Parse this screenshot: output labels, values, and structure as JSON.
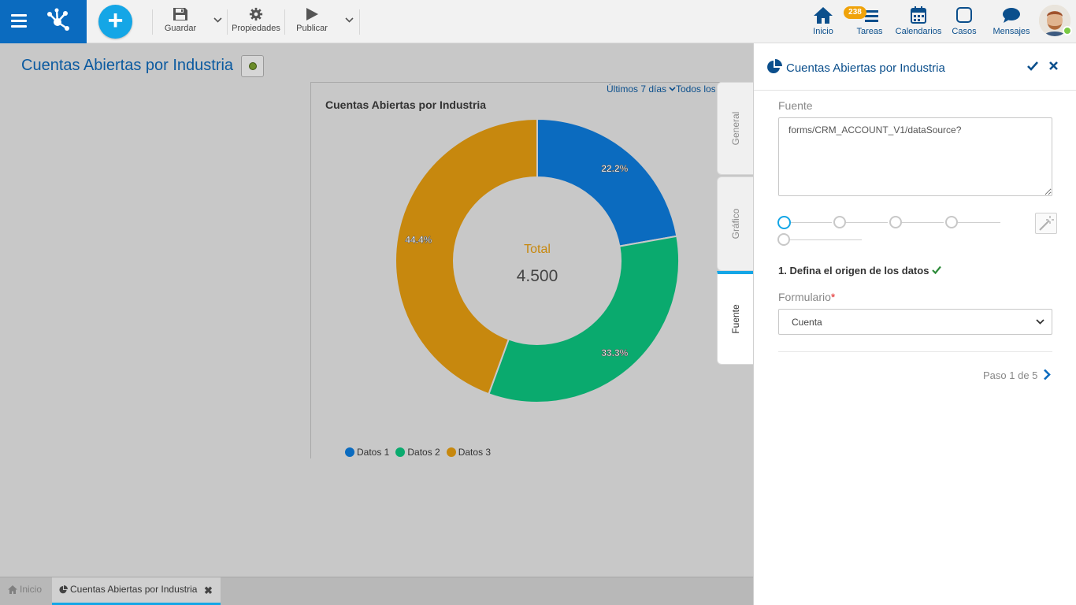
{
  "toolbar": {
    "save_label": "Guardar",
    "properties_label": "Propiedades",
    "publish_label": "Publicar"
  },
  "nav": {
    "home_label": "Inicio",
    "tasks_label": "Tareas",
    "tasks_badge": "238",
    "calendars_label": "Calendarios",
    "cases_label": "Casos",
    "messages_label": "Mensajes"
  },
  "page": {
    "title": "Cuentas Abiertas por Industria"
  },
  "widget": {
    "period_label": "Últimos 7 días",
    "filter_label": "Todos los"
  },
  "chart_data": {
    "type": "pie",
    "title": "Cuentas Abiertas por Industria",
    "center_label": "Total",
    "center_value": "4.500",
    "categories": [
      "Datos 1",
      "Datos 2",
      "Datos 3"
    ],
    "values": [
      22.2,
      33.3,
      44.4
    ],
    "value_labels": [
      "22.2%",
      "33.3%",
      "44.4%"
    ],
    "colors": [
      "#0b6bbf",
      "#0aaa6e",
      "#c7880e"
    ],
    "legend_placement": "bottom-left"
  },
  "tabs": {
    "general": "General",
    "chart": "Gráfico",
    "source": "Fuente"
  },
  "panel": {
    "title": "Cuentas Abiertas por Industria",
    "source_label": "Fuente",
    "source_value": "forms/CRM_ACCOUNT_V1/dataSource?",
    "step_heading": "1. Defina el origen de los datos",
    "form_label": "Formulario",
    "form_required_mark": "*",
    "form_value": "Cuenta",
    "pager_text": "Paso 1 de 5"
  },
  "bottom_tabs": {
    "home_label": "Inicio",
    "current_label": "Cuentas Abiertas por Industria"
  }
}
